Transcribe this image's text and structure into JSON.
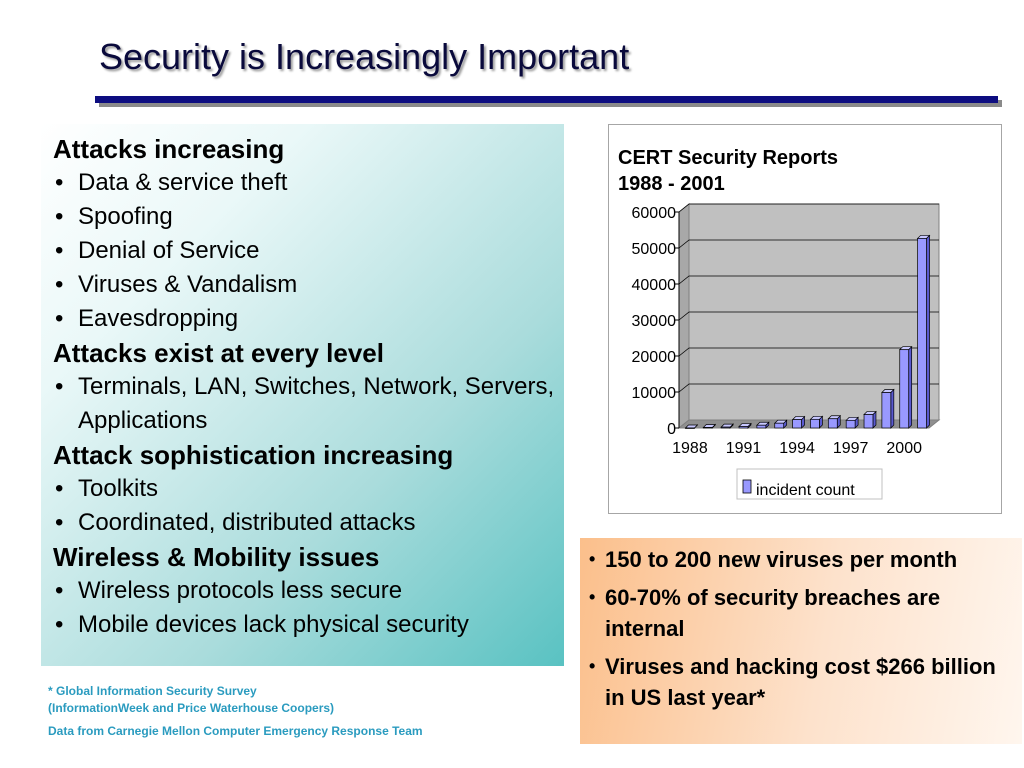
{
  "slide": {
    "title": "Security is Increasingly Important"
  },
  "left_panel": {
    "sections": [
      {
        "heading": "Attacks increasing",
        "bullets": [
          "Data & service theft",
          "Spoofing",
          "Denial of Service",
          "Viruses & Vandalism",
          "Eavesdropping"
        ]
      },
      {
        "heading": "Attacks exist at every level",
        "bullets": [
          "Terminals, LAN, Switches, Network, Servers, Applications"
        ]
      },
      {
        "heading": "Attack sophistication increasing",
        "bullets": [
          "Toolkits",
          "Coordinated, distributed attacks"
        ]
      },
      {
        "heading": "Wireless & Mobility issues",
        "bullets": [
          "Wireless protocols less secure",
          "Mobile devices lack physical security"
        ]
      }
    ],
    "bullet_glyph": "•"
  },
  "right_panel": {
    "bullet_glyph": "•",
    "bullets": [
      "150 to 200 new viruses per month",
      "60-70% of security breaches are internal",
      "Viruses and hacking cost $266 billion in US last year*"
    ]
  },
  "footnotes": {
    "line1": "* Global Information Security Survey",
    "line2": "(InformationWeek and Price Waterhouse Coopers)",
    "line3": "Data from Carnegie Mellon Computer Emergency Response Team"
  },
  "colors": {
    "bar_fill": "#9999ff",
    "bar_top": "#c8c8ff",
    "bar_side": "#5a5ad0",
    "title": "#0a0a3c",
    "rule": "#0d0d80",
    "footnote": "#2a9bbf"
  },
  "chart_data": {
    "type": "bar",
    "title_line1": "CERT Security Reports",
    "title_line2": "1988 -  2001",
    "categories": [
      "1988",
      "1989",
      "1990",
      "1991",
      "1992",
      "1993",
      "1994",
      "1995",
      "1996",
      "1997",
      "1998",
      "1999",
      "2000",
      "2001"
    ],
    "x_tick_labels": [
      "1988",
      "1991",
      "1994",
      "1997",
      "2000"
    ],
    "series": [
      {
        "name": "incident count",
        "values": [
          6,
          132,
          252,
          406,
          773,
          1334,
          2340,
          2412,
          2573,
          2134,
          3734,
          9859,
          21756,
          52658
        ]
      }
    ],
    "y_ticks": [
      0,
      10000,
      20000,
      30000,
      40000,
      50000,
      60000
    ],
    "ylim": [
      0,
      60000
    ],
    "grid": true,
    "legend_position": "bottom"
  }
}
